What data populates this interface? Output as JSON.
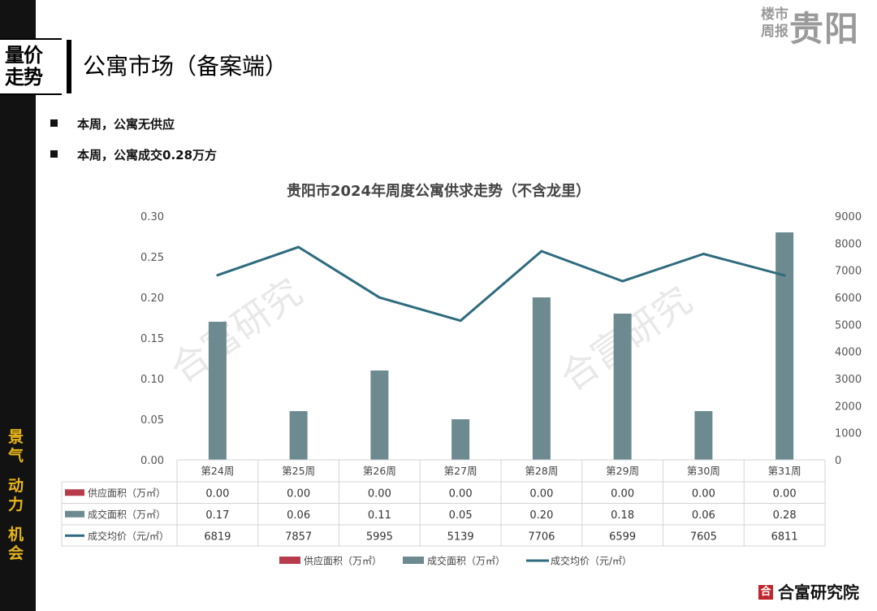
{
  "header": {
    "section_tag": "量价\n走势",
    "title": "公寓市场（备案端）",
    "brand_small": "楼市\n周报",
    "brand_city": "贵阳"
  },
  "sidebar": {
    "words": [
      "景气",
      "动力",
      "机会"
    ]
  },
  "bullets": [
    "本周，公寓无供应",
    "本周，公寓成交0.28万方"
  ],
  "footer": {
    "brand": "合富研究院"
  },
  "watermark": "合富研究",
  "colors": {
    "supply": "#b83b4b",
    "deal_area": "#6d8a90",
    "price_line": "#2f6b7e"
  },
  "chart_data": {
    "type": "bar",
    "title": "贵阳市2024年周度公寓供求走势（不含龙里）",
    "categories": [
      "第24周",
      "第25周",
      "第26周",
      "第27周",
      "第28周",
      "第29周",
      "第30周",
      "第31周"
    ],
    "series": [
      {
        "name": "供应面积（万㎡）",
        "type": "bar",
        "axis": "left",
        "values": [
          0.0,
          0.0,
          0.0,
          0.0,
          0.0,
          0.0,
          0.0,
          0.0
        ],
        "labels": [
          "0.00",
          "0.00",
          "0.00",
          "0.00",
          "0.00",
          "0.00",
          "0.00",
          "0.00"
        ]
      },
      {
        "name": "成交面积（万㎡）",
        "type": "bar",
        "axis": "left",
        "values": [
          0.17,
          0.06,
          0.11,
          0.05,
          0.2,
          0.18,
          0.06,
          0.28
        ],
        "labels": [
          "0.17",
          "0.06",
          "0.11",
          "0.05",
          "0.20",
          "0.18",
          "0.06",
          "0.28"
        ]
      },
      {
        "name": "成交均价（元/㎡）",
        "type": "line",
        "axis": "right",
        "values": [
          6819,
          7857,
          5995,
          5139,
          7706,
          6599,
          7605,
          6811
        ],
        "labels": [
          "6819",
          "7857",
          "5995",
          "5139",
          "7706",
          "6599",
          "7605",
          "6811"
        ]
      }
    ],
    "y_left": {
      "ylim": [
        0,
        0.3
      ],
      "ticks": [
        "0.00",
        "0.05",
        "0.10",
        "0.15",
        "0.20",
        "0.25",
        "0.30"
      ]
    },
    "y_right": {
      "ylim": [
        0,
        9000
      ],
      "ticks": [
        "0",
        "1000",
        "2000",
        "3000",
        "4000",
        "5000",
        "6000",
        "7000",
        "8000",
        "9000"
      ]
    },
    "grid": false,
    "legend_position": "bottom",
    "data_table": true
  }
}
